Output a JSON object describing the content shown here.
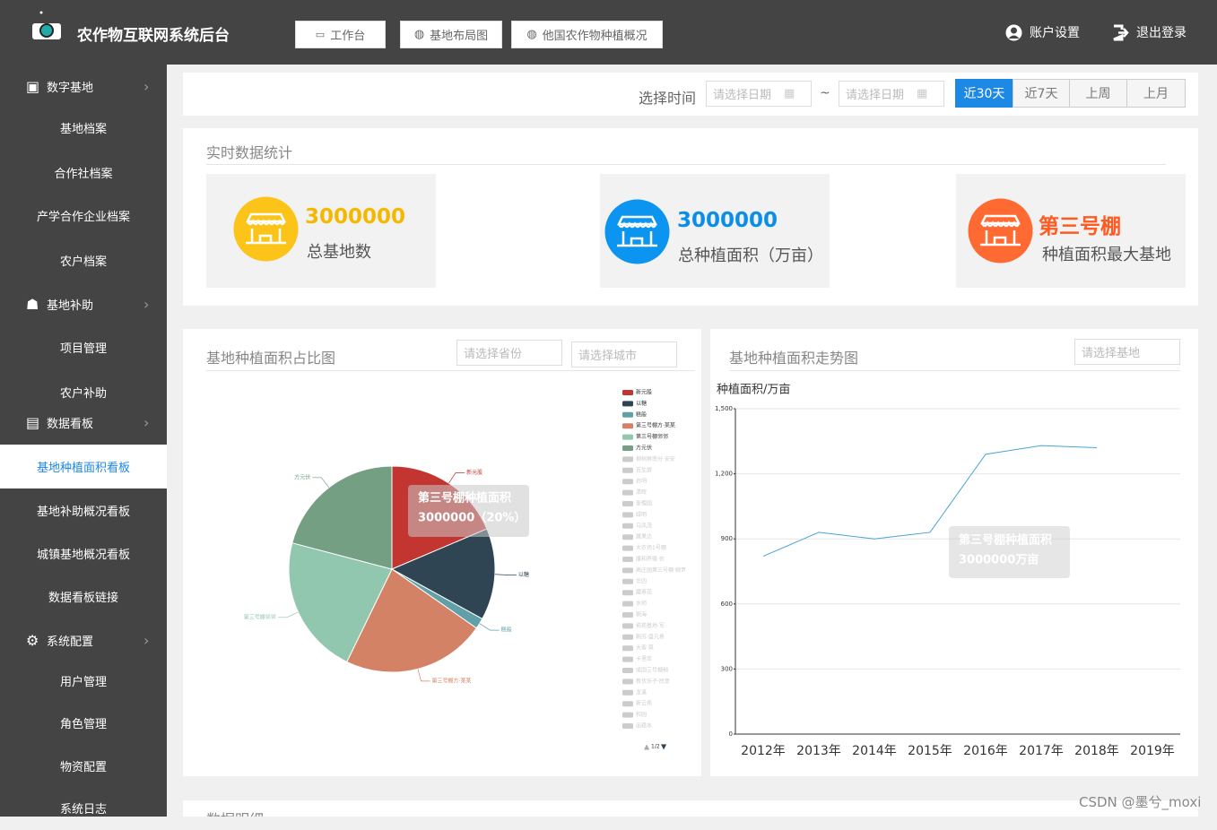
{
  "header": {
    "title": "农作物互联网系统后台",
    "nav": [
      "工作台",
      "基地布局图",
      "他国农作物种植概况"
    ],
    "account": "账户设置",
    "logout": "退出登录"
  },
  "sidebar": {
    "groups": [
      {
        "label": "数字基地",
        "items": [
          "基地档案",
          "合作社档案",
          "产学合作企业档案",
          "农户档案"
        ]
      },
      {
        "label": "基地补助",
        "items": [
          "项目管理",
          "农户补助"
        ]
      },
      {
        "label": "数据看板",
        "items": [
          "基地种植面积看板",
          "基地补助概况看板",
          "城镇基地概况看板",
          "数据看板链接"
        ]
      },
      {
        "label": "系统配置",
        "items": [
          "用户管理",
          "角色管理",
          "物资配置",
          "系统日志"
        ]
      }
    ]
  },
  "filter": {
    "label": "选择时间",
    "start_placeholder": "请选择日期",
    "separator": "~",
    "end_placeholder": "请选择日期",
    "ranges": [
      "近30天",
      "近7天",
      "上周",
      "上月"
    ]
  },
  "stats": {
    "title": "实时数据统计",
    "cards": [
      {
        "value": 3000000,
        "label": "总基地数"
      },
      {
        "value": 3000000,
        "label": "总种植面积（万亩）"
      },
      {
        "value": "第三号棚",
        "label": "种植面积最大基地"
      }
    ]
  },
  "pie_filters": [
    "请选择省份",
    "请选择城市"
  ],
  "line_filter": "请选择基地",
  "chart_data": [
    {
      "type": "pie",
      "title": "基地种植面积占比图",
      "categories": [
        "新元股",
        "以糖",
        "糕般",
        "第三号棚方·某某",
        "第三号棚邻邻",
        "方元伏"
      ],
      "values": [
        18.6,
        14.4,
        1.7,
        22.5,
        21.9,
        20.9
      ],
      "colors": [
        "#c23531",
        "#2f4554",
        "#61a0a8",
        "#d48265",
        "#91c7ae",
        "#749f83"
      ],
      "inactive_legend": [
        "柳树屏南分·安安",
        "百生屏",
        "启明",
        "清晖",
        "奎槐园",
        "绿明",
        "马凤茂",
        "属果达",
        "大农场1号棚",
        "康和养殖·农",
        "高庄园第三号棚·柳尹",
        "华四",
        "藏茶花",
        "水师",
        "朝海",
        "拓苑基地·军",
        "朝苏·盛凡希",
        "大客·菜",
        "卡里库",
        "成国三号棚稍",
        "新伏乐子·民意",
        "龙溪",
        "新云希",
        "和园",
        "品稳水"
      ],
      "legend_page": "1/2",
      "tooltip": [
        "第三号棚种植面积",
        "3000000（20%）"
      ]
    },
    {
      "type": "line",
      "title": "基地种植面积走势图",
      "y_label": "种植面积/万亩",
      "categories": [
        "2012年",
        "2013年",
        "2014年",
        "2015年",
        "2016年",
        "2017年",
        "2018年",
        "2019年"
      ],
      "values": [
        820,
        930,
        900,
        930,
        1290,
        1330,
        1320,
        null
      ],
      "color": "#4aa3d9",
      "ylim": [
        0,
        1500
      ],
      "yticks": [
        0,
        300,
        600,
        900,
        {
          "value": 1200,
          "label": "1,200"
        },
        {
          "value": 1500,
          "label": "1,500"
        }
      ],
      "grid": true,
      "tooltip": [
        "第三号棚种植面积",
        "3000000万亩"
      ]
    }
  ],
  "footer_panel_title": "数据明细",
  "watermark": "CSDN @墨兮_moxi"
}
